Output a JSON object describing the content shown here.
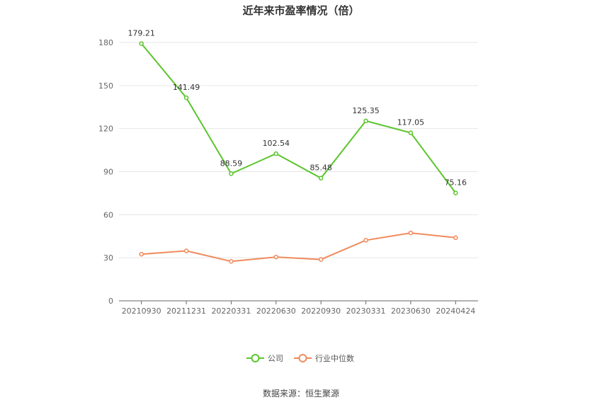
{
  "chart_data": {
    "type": "line",
    "title": "近年来市盈率情况（倍）",
    "categories": [
      "20210930",
      "20211231",
      "20220331",
      "20220630",
      "20220930",
      "20230331",
      "20230630",
      "20240424"
    ],
    "series": [
      {
        "name": "公司",
        "color": "#5bc52e",
        "values": [
          179.21,
          141.49,
          88.59,
          102.54,
          85.48,
          125.35,
          117.05,
          75.16
        ],
        "labels": [
          "179.21",
          "141.49",
          "88.59",
          "102.54",
          "85.48",
          "125.35",
          "117.05",
          "75.16"
        ]
      },
      {
        "name": "行业中位数",
        "color": "#f08a5d",
        "values": [
          32.5,
          34.8,
          27.5,
          30.5,
          28.8,
          42.2,
          47.3,
          44.0
        ]
      }
    ],
    "yticks": [
      0,
      30,
      60,
      90,
      120,
      150,
      180
    ],
    "ylim": [
      0,
      180
    ],
    "grid": true,
    "legend_position": "bottom"
  },
  "source": "数据来源：恒生聚源"
}
